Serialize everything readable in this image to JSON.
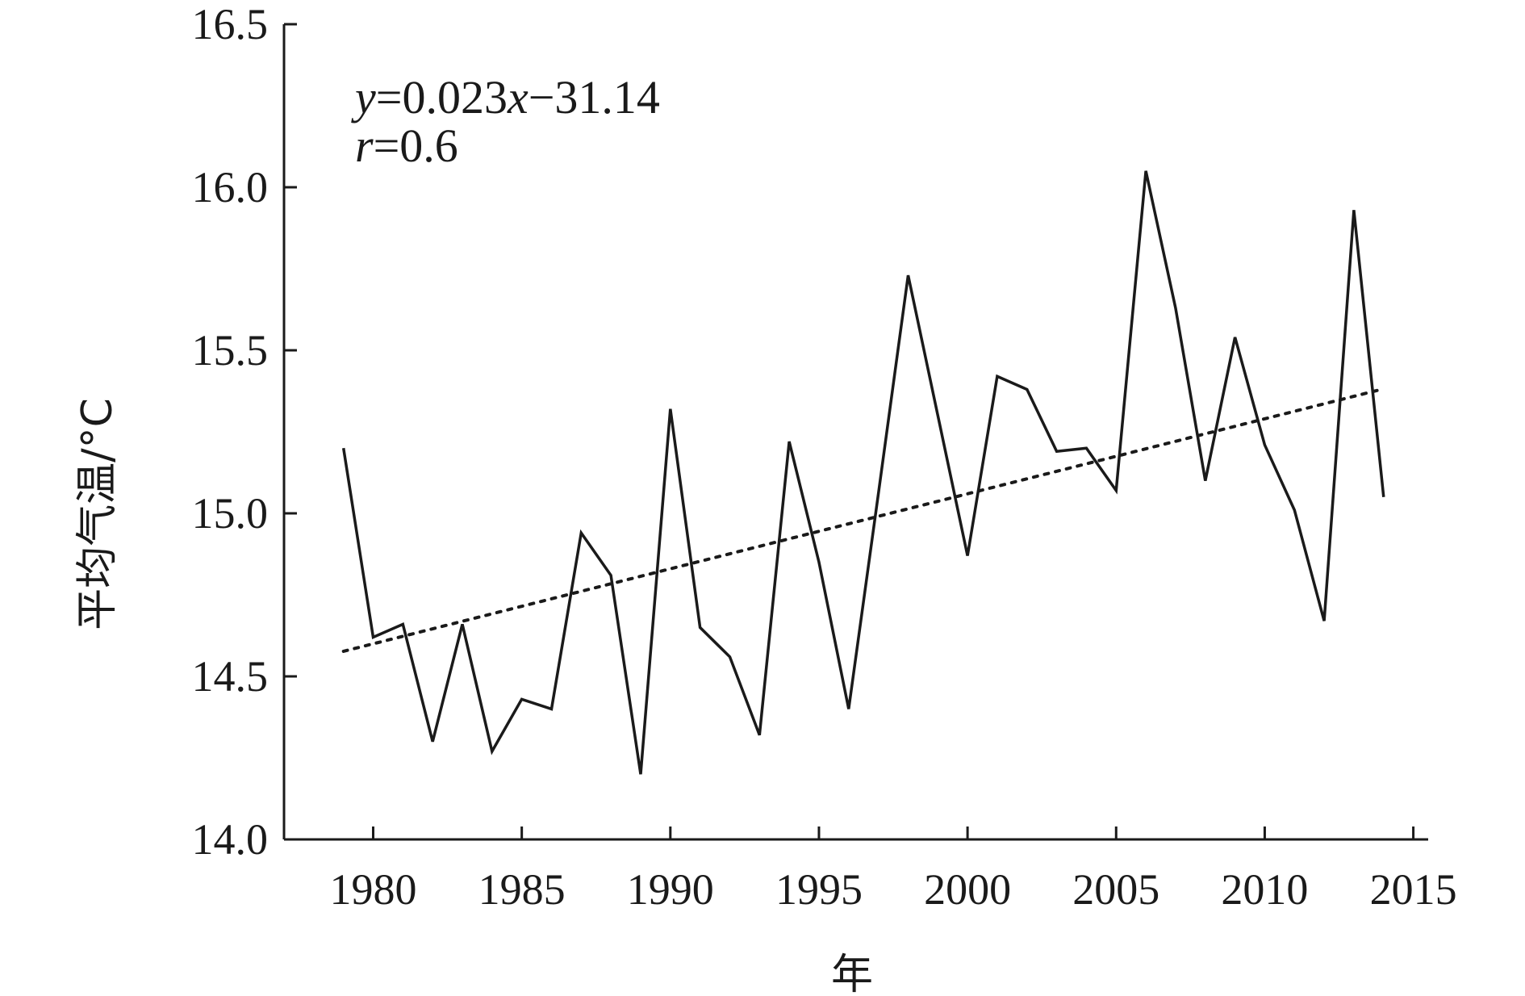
{
  "chart_data": {
    "type": "line",
    "title": "",
    "xlabel": "年",
    "ylabel": "平均气温/°C",
    "xlim": [
      1977,
      2015.5
    ],
    "ylim": [
      14.0,
      16.5
    ],
    "x_ticks": [
      1980,
      1985,
      1990,
      1995,
      2000,
      2005,
      2010,
      2015
    ],
    "y_ticks": [
      "14.0",
      "14.5",
      "15.0",
      "15.5",
      "16.0",
      "16.5"
    ],
    "grid": false,
    "series": [
      {
        "style": "solid",
        "color": "#1a1a1a",
        "x": [
          1979,
          1980,
          1981,
          1982,
          1983,
          1984,
          1985,
          1986,
          1987,
          1988,
          1989,
          1990,
          1991,
          1992,
          1993,
          1994,
          1995,
          1996,
          1997,
          1998,
          1999,
          2000,
          2001,
          2002,
          2003,
          2004,
          2005,
          2006,
          2007,
          2008,
          2009,
          2010,
          2011,
          2012,
          2013,
          2014
        ],
        "values": [
          15.2,
          14.62,
          14.66,
          14.3,
          14.66,
          14.27,
          14.43,
          14.4,
          14.94,
          14.81,
          14.2,
          15.32,
          14.65,
          14.56,
          14.32,
          15.22,
          14.85,
          14.4,
          15.06,
          15.73,
          15.3,
          14.87,
          15.42,
          15.38,
          15.19,
          15.2,
          15.07,
          16.05,
          15.63,
          15.1,
          15.54,
          15.21,
          15.01,
          14.67,
          15.93,
          15.05
        ]
      },
      {
        "style": "dotted",
        "color": "#1a1a1a",
        "x": [
          1979,
          2014
        ],
        "values": [
          14.577,
          15.382
        ]
      }
    ],
    "annotations": {
      "equation": {
        "y": "y",
        "eq": "=0.023",
        "x": "x",
        "rest": "−31.14"
      },
      "r": {
        "r": "r",
        "rest": "=0.6"
      }
    }
  }
}
